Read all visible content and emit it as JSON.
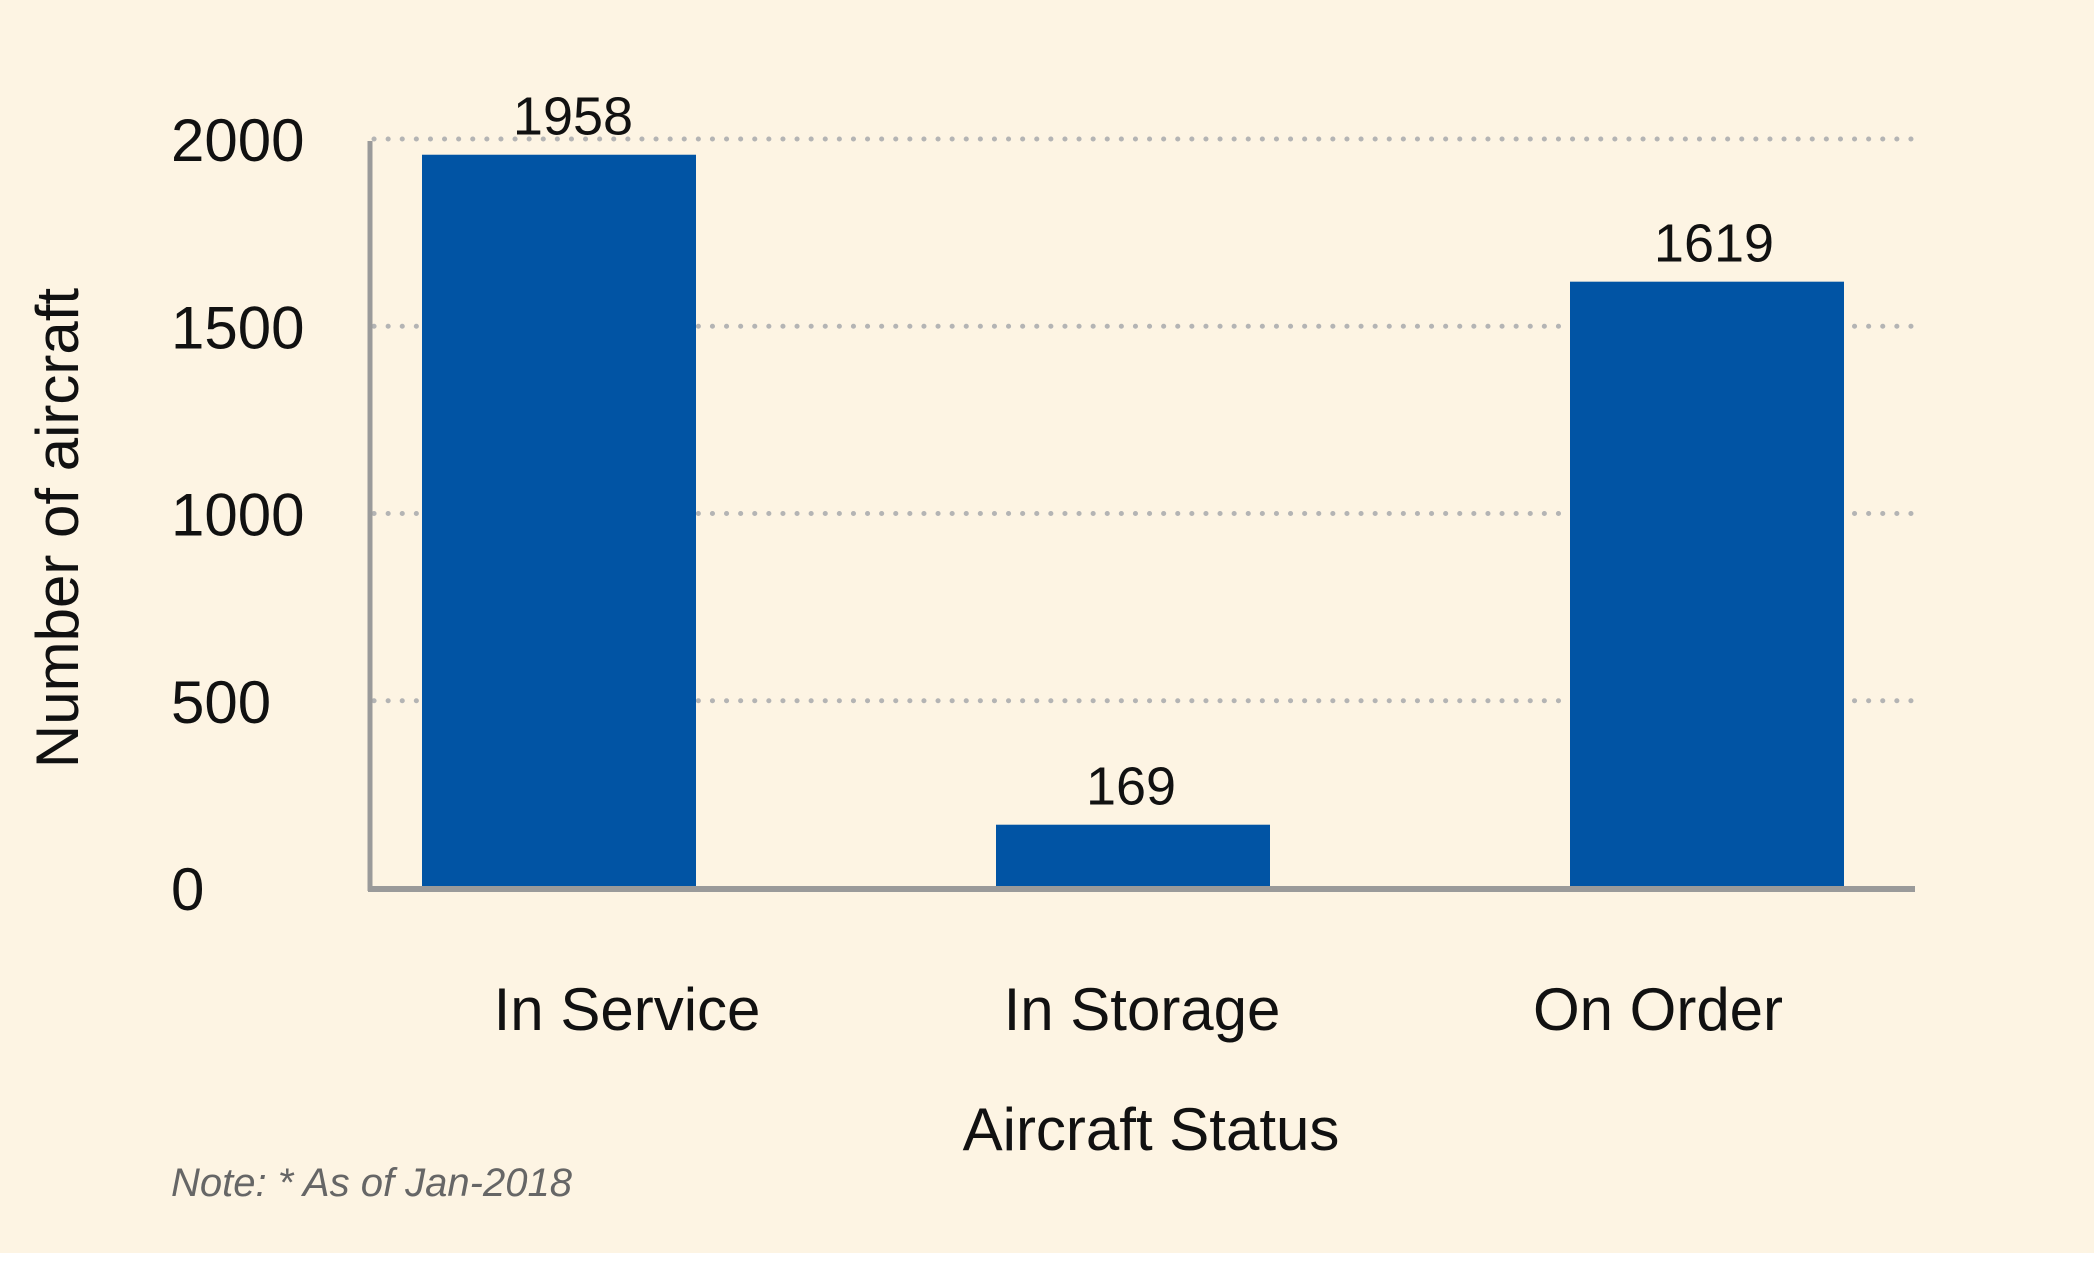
{
  "chart_data": {
    "type": "bar",
    "categories": [
      "In Service",
      "In Storage",
      "On Order"
    ],
    "values": [
      1958,
      169,
      1619
    ],
    "data_labels": [
      "1958",
      "169",
      "1619"
    ],
    "xlabel": "Aircraft Status",
    "ylabel": "Number of aircraft",
    "ylim": [
      0,
      2000
    ],
    "yticks": [
      0,
      500,
      1000,
      1500,
      2000
    ],
    "ytick_labels": [
      "0",
      "500",
      "1000",
      "1500",
      "2000"
    ],
    "grid": "horizontal dotted",
    "legend": "none",
    "note": "Note: * As of Jan-2018"
  },
  "colors": {
    "background": "#fdf4e3",
    "bar": "#0154a4",
    "axis": "#9a9a9a",
    "grid": "#b4b4b4",
    "text": "#111111",
    "note": "#666666"
  }
}
